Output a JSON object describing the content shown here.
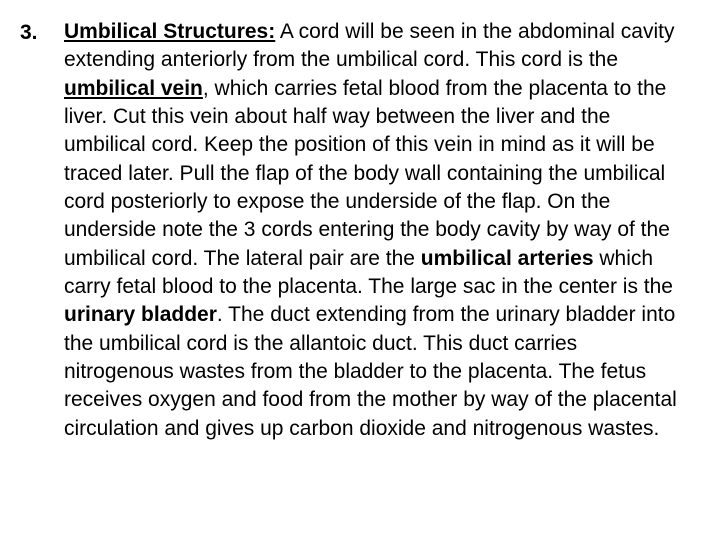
{
  "item": {
    "number": "3.",
    "heading": "Umbilical Structures:",
    "s1a": " A cord will be seen in the abdominal cavity extending anteriorly from the umbilical cord. This cord is the ",
    "term1": "umbilical vein",
    "s1b": ", which carries fetal blood from the placenta to the liver. Cut this vein about half way between the liver and the umbilical cord. Keep the position of this vein in mind as it will be traced later. Pull the flap of the body wall containing the umbilical cord posteriorly to expose the underside of the flap. On the underside note the 3 cords entering the body cavity by way of the umbilical cord. The lateral pair are the ",
    "term2": "umbilical arteries",
    "s1c": " which carry fetal blood to the placenta. The large sac in the center is the ",
    "term3": "urinary bladder",
    "s1d": ". The duct extending from the urinary bladder into the umbilical cord is the allantoic duct. This duct carries nitrogenous wastes from the bladder to the placenta. The fetus receives oxygen and food from the mother by way of the placental circulation and gives up carbon dioxide and nitrogenous wastes."
  },
  "colors": {
    "background": "#ffffff",
    "text": "#000000"
  },
  "typography": {
    "font_family": "Arial",
    "body_fontsize_pt": 16,
    "line_height": 1.35
  }
}
